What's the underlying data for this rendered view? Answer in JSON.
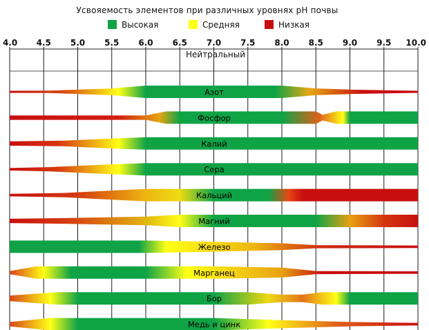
{
  "title": "Усвояемость элементов при различных уровнях pH  почвы",
  "legend": [
    {
      "label": "Высокая",
      "color": "#0fa346"
    },
    {
      "label": "Средняя",
      "color": "#ffff17"
    },
    {
      "label": "Низкая",
      "color": "#c80f0f"
    }
  ],
  "neutral_label": "Нейтральный",
  "chart_data": {
    "type": "area",
    "title": "Усвояемость элементов при различных уровнях pH  почвы",
    "xlabel": "",
    "ylabel": "",
    "xlim": [
      4.0,
      10.0
    ],
    "xticks": [
      "4.0",
      "4.5",
      "5.0",
      "5.5",
      "6.0",
      "6.5",
      "7.0",
      "7.5",
      "8.0",
      "8.5",
      "9.0",
      "9.5",
      "10.0"
    ],
    "x_annotation": {
      "text": "Нейтральный",
      "range": [
        6.0,
        8.0
      ]
    },
    "levels": [
      {
        "name": "Высокая",
        "color": "#0fa346"
      },
      {
        "name": "Средняя",
        "color": "#ffff17"
      },
      {
        "name": "Низкая",
        "color": "#c80f0f"
      }
    ],
    "series": [
      {
        "name": "Азот",
        "width": [
          [
            4.0,
            0.1
          ],
          [
            4.6,
            0.2
          ],
          [
            5.5,
            0.55
          ],
          [
            6.0,
            1.0
          ],
          [
            8.0,
            1.0
          ],
          [
            8.5,
            0.55
          ],
          [
            9.0,
            0.35
          ],
          [
            10.0,
            0.1
          ]
        ],
        "color": [
          [
            4.0,
            "#c80f0f"
          ],
          [
            4.8,
            "#d9480f"
          ],
          [
            5.6,
            "#ffff17"
          ],
          [
            6.0,
            "#0fa346"
          ],
          [
            7.9,
            "#0fa346"
          ],
          [
            8.4,
            "#e5a812"
          ],
          [
            9.2,
            "#c80f0f"
          ],
          [
            10.0,
            "#c80f0f"
          ]
        ]
      },
      {
        "name": "Фосфор",
        "width": [
          [
            4.0,
            0.35
          ],
          [
            6.0,
            0.35
          ],
          [
            6.3,
            1.0
          ],
          [
            8.5,
            1.0
          ],
          [
            8.6,
            0.45
          ],
          [
            8.8,
            1.0
          ],
          [
            10.0,
            1.0
          ]
        ],
        "color": [
          [
            4.0,
            "#c80f0f"
          ],
          [
            5.6,
            "#d01e0f"
          ],
          [
            6.2,
            "#e8a412"
          ],
          [
            6.5,
            "#0fa346"
          ],
          [
            8.0,
            "#0fa346"
          ],
          [
            8.55,
            "#e0601a"
          ],
          [
            8.9,
            "#ffff17"
          ],
          [
            9.0,
            "#0fa346"
          ],
          [
            10.0,
            "#0fa346"
          ]
        ]
      },
      {
        "name": "Калий",
        "width": [
          [
            4.0,
            0.35
          ],
          [
            4.8,
            0.45
          ],
          [
            5.6,
            0.85
          ],
          [
            6.0,
            1.0
          ],
          [
            10.0,
            1.0
          ]
        ],
        "color": [
          [
            4.0,
            "#c80f0f"
          ],
          [
            4.7,
            "#d6330f"
          ],
          [
            5.6,
            "#ffff17"
          ],
          [
            6.0,
            "#0fa346"
          ],
          [
            10.0,
            "#0fa346"
          ]
        ]
      },
      {
        "name": "Сера",
        "width": [
          [
            4.0,
            0.2
          ],
          [
            4.6,
            0.35
          ],
          [
            5.5,
            0.8
          ],
          [
            6.0,
            1.0
          ],
          [
            10.0,
            1.0
          ]
        ],
        "color": [
          [
            4.0,
            "#c80f0f"
          ],
          [
            4.7,
            "#d6380f"
          ],
          [
            5.6,
            "#ffff17"
          ],
          [
            6.0,
            "#0fa346"
          ],
          [
            10.0,
            "#0fa346"
          ]
        ]
      },
      {
        "name": "Кальций",
        "width": [
          [
            4.0,
            0.2
          ],
          [
            4.8,
            0.35
          ],
          [
            6.0,
            1.0
          ],
          [
            10.0,
            1.0
          ]
        ],
        "color": [
          [
            4.0,
            "#c80f0f"
          ],
          [
            5.0,
            "#d43a0f"
          ],
          [
            6.0,
            "#eeb612"
          ],
          [
            6.5,
            "#eedc14"
          ],
          [
            7.0,
            "#0fa346"
          ],
          [
            7.8,
            "#0fa346"
          ],
          [
            8.1,
            "#e84512"
          ],
          [
            8.3,
            "#c80f0f"
          ],
          [
            10.0,
            "#c80f0f"
          ]
        ]
      },
      {
        "name": "Магний",
        "width": [
          [
            4.0,
            0.35
          ],
          [
            4.8,
            0.45
          ],
          [
            6.0,
            0.7
          ],
          [
            6.5,
            1.0
          ],
          [
            8.5,
            1.0
          ],
          [
            10.0,
            1.0
          ]
        ],
        "color": [
          [
            4.0,
            "#c80f0f"
          ],
          [
            4.9,
            "#d6400f"
          ],
          [
            6.0,
            "#e0b512"
          ],
          [
            6.5,
            "#ffff17"
          ],
          [
            7.0,
            "#0fa346"
          ],
          [
            8.5,
            "#0fa346"
          ],
          [
            9.0,
            "#e7a012"
          ],
          [
            9.5,
            "#d4360f"
          ],
          [
            10.0,
            "#c80f0f"
          ]
        ]
      },
      {
        "name": "Железо",
        "width": [
          [
            4.0,
            1.0
          ],
          [
            6.0,
            1.0
          ],
          [
            7.0,
            0.8
          ],
          [
            8.0,
            0.55
          ],
          [
            8.5,
            0.25
          ],
          [
            10.0,
            0.2
          ]
        ],
        "color": [
          [
            4.0,
            "#0fa346"
          ],
          [
            5.9,
            "#0fa346"
          ],
          [
            6.3,
            "#ffff17"
          ],
          [
            7.6,
            "#eeb512"
          ],
          [
            8.6,
            "#cd2a0f"
          ],
          [
            10.0,
            "#c80f0f"
          ]
        ]
      },
      {
        "name": "Марганец",
        "width": [
          [
            4.0,
            0.25
          ],
          [
            4.4,
            1.0
          ],
          [
            7.0,
            1.0
          ],
          [
            8.0,
            0.8
          ],
          [
            8.5,
            0.25
          ],
          [
            10.0,
            0.2
          ]
        ],
        "color": [
          [
            4.0,
            "#d8421a"
          ],
          [
            4.5,
            "#ffff17"
          ],
          [
            4.9,
            "#0fa346"
          ],
          [
            6.0,
            "#0fa346"
          ],
          [
            6.6,
            "#ffff17"
          ],
          [
            8.0,
            "#e8a212"
          ],
          [
            8.6,
            "#c80f0f"
          ],
          [
            10.0,
            "#c80f0f"
          ]
        ]
      },
      {
        "name": "Бор",
        "width": [
          [
            4.0,
            0.45
          ],
          [
            4.7,
            1.0
          ],
          [
            7.5,
            1.0
          ],
          [
            8.0,
            0.6
          ],
          [
            8.3,
            0.6
          ],
          [
            8.6,
            1.0
          ],
          [
            10.0,
            1.0
          ]
        ],
        "color": [
          [
            4.0,
            "#d8481a"
          ],
          [
            4.6,
            "#ffff17"
          ],
          [
            5.0,
            "#0fa346"
          ],
          [
            7.0,
            "#0fa346"
          ],
          [
            7.8,
            "#eed812"
          ],
          [
            8.3,
            "#e2751a"
          ],
          [
            8.8,
            "#ffff17"
          ],
          [
            9.0,
            "#0fa346"
          ],
          [
            10.0,
            "#0fa346"
          ]
        ]
      },
      {
        "name": "Медь и цинк",
        "width": [
          [
            4.0,
            0.35
          ],
          [
            4.6,
            1.0
          ],
          [
            7.0,
            1.0
          ],
          [
            8.0,
            0.65
          ],
          [
            9.0,
            0.35
          ],
          [
            10.0,
            0.2
          ]
        ],
        "color": [
          [
            4.0,
            "#d8481a"
          ],
          [
            4.6,
            "#ffff17"
          ],
          [
            5.0,
            "#0fa346"
          ],
          [
            7.0,
            "#0fa346"
          ],
          [
            7.8,
            "#ffff17"
          ],
          [
            8.8,
            "#e0601a"
          ],
          [
            10.0,
            "#c80f0f"
          ]
        ]
      }
    ]
  }
}
